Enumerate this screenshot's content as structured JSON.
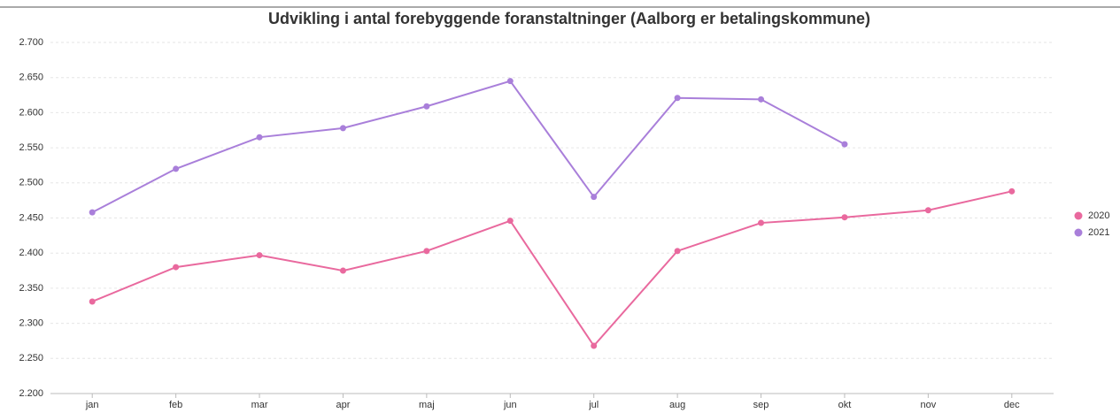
{
  "chart_data": {
    "type": "line",
    "title": "Udvikling i antal forebyggende foranstaltninger (Aalborg er betalingskommune)",
    "categories": [
      "jan",
      "feb",
      "mar",
      "apr",
      "maj",
      "jun",
      "jul",
      "aug",
      "sep",
      "okt",
      "nov",
      "dec"
    ],
    "series": [
      {
        "name": "2020",
        "color": "#e9699e",
        "values": [
          2331,
          2380,
          2397,
          2375,
          2403,
          2446,
          2268,
          2403,
          2443,
          2451,
          2461,
          2488
        ]
      },
      {
        "name": "2021",
        "color": "#a97fda",
        "values": [
          2458,
          2520,
          2565,
          2578,
          2609,
          2645,
          2480,
          2621,
          2619,
          2555,
          null,
          null
        ]
      }
    ],
    "ylim": [
      2200,
      2700
    ],
    "yticks": [
      {
        "value": 2200,
        "label": "2.200"
      },
      {
        "value": 2250,
        "label": "2.250"
      },
      {
        "value": 2300,
        "label": "2.300"
      },
      {
        "value": 2350,
        "label": "2.350"
      },
      {
        "value": 2400,
        "label": "2.400"
      },
      {
        "value": 2450,
        "label": "2.450"
      },
      {
        "value": 2500,
        "label": "2.500"
      },
      {
        "value": 2550,
        "label": "2.550"
      },
      {
        "value": 2600,
        "label": "2.600"
      },
      {
        "value": 2650,
        "label": "2.650"
      },
      {
        "value": 2700,
        "label": "2.700"
      }
    ],
    "grid": true,
    "legend": "right"
  }
}
